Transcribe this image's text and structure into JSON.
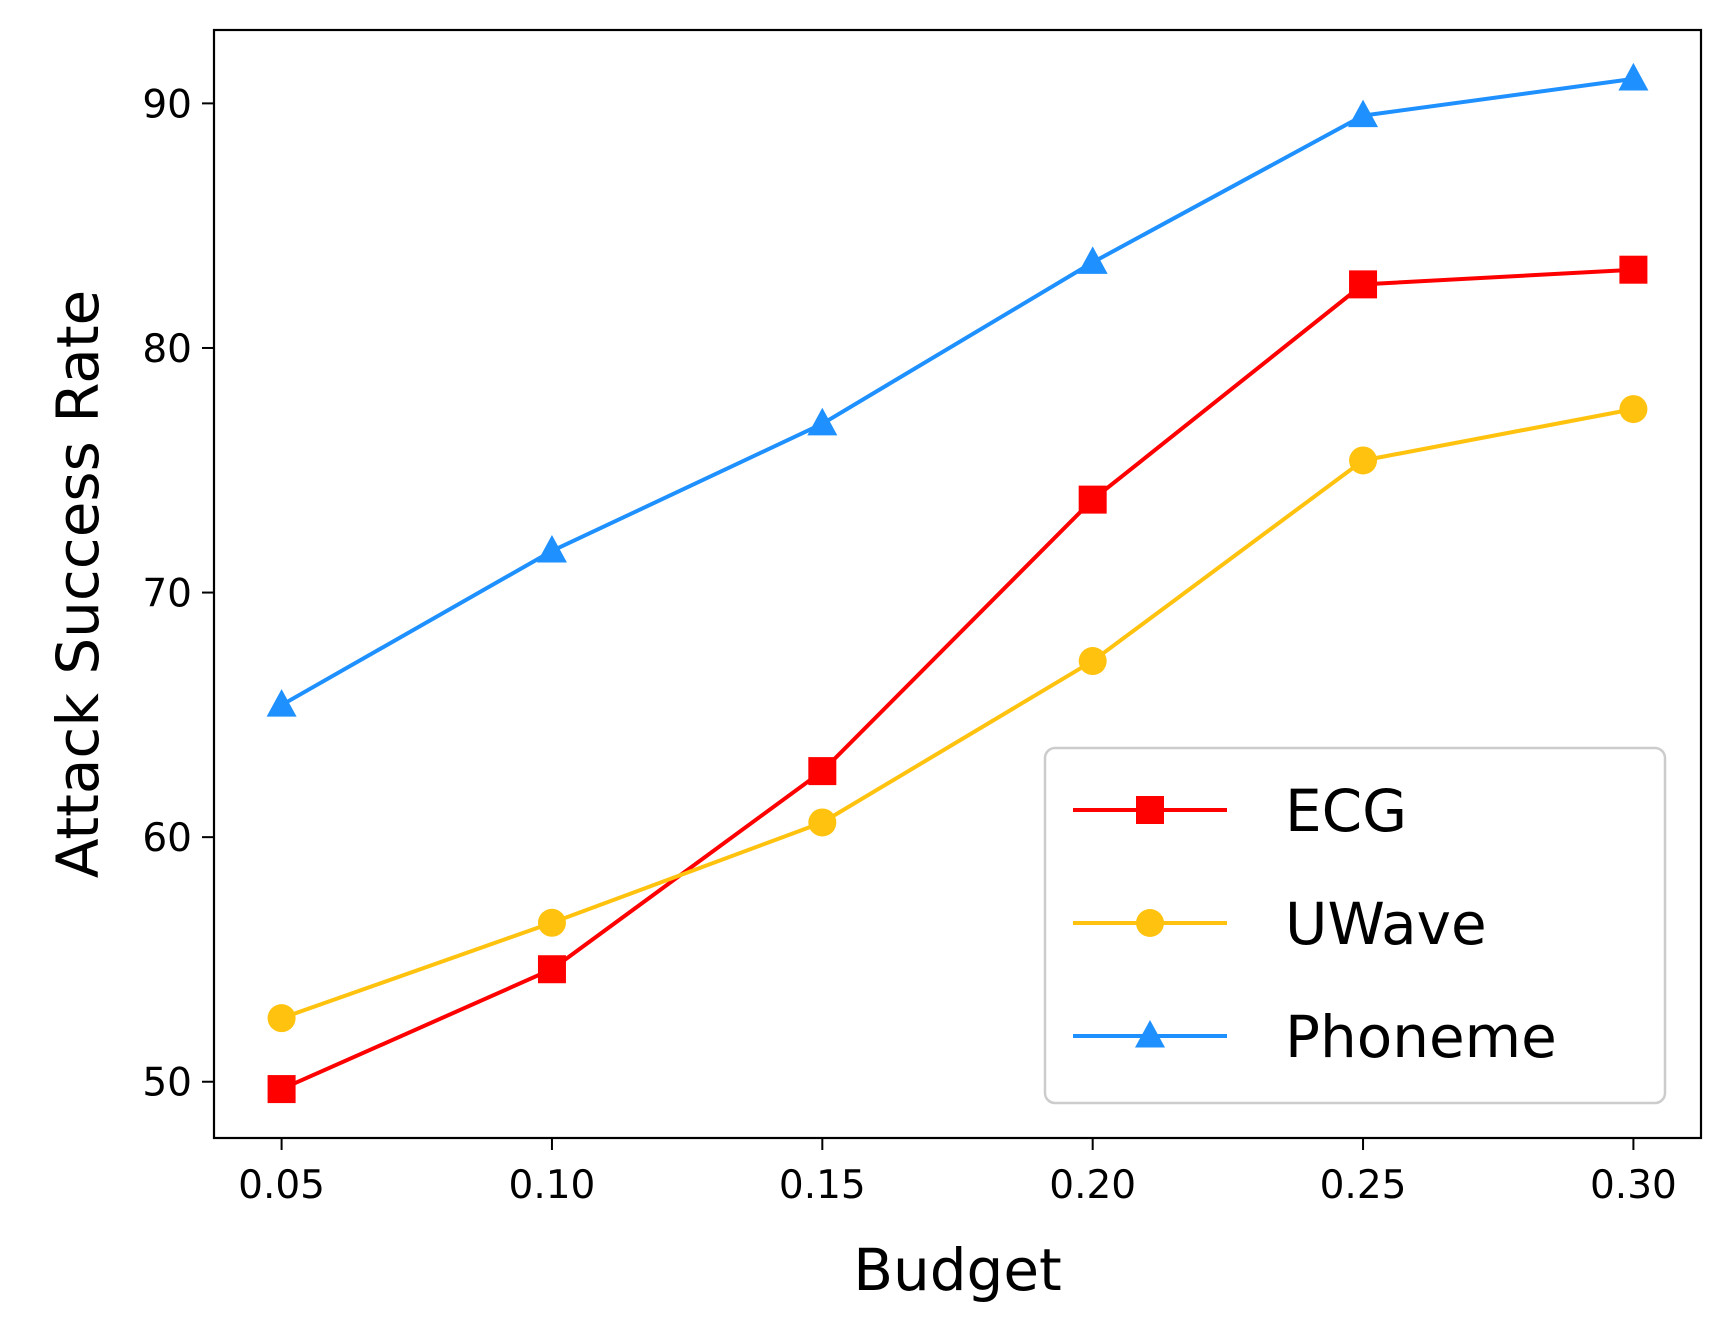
{
  "chart_data": {
    "type": "line",
    "title": "",
    "xlabel": "Budget",
    "ylabel": "Attack Success Rate",
    "x": [
      0.05,
      0.1,
      0.15,
      0.2,
      0.25,
      0.3
    ],
    "x_tick_labels": [
      "0.05",
      "0.10",
      "0.15",
      "0.20",
      "0.25",
      "0.30"
    ],
    "y_ticks": [
      50,
      60,
      70,
      80,
      90
    ],
    "y_tick_labels": [
      "50",
      "60",
      "70",
      "80",
      "90"
    ],
    "xlim": [
      0.0375,
      0.3125
    ],
    "ylim": [
      47.7,
      93.0
    ],
    "grid": false,
    "legend_position": "lower-right",
    "series": [
      {
        "name": "ECG",
        "color": "#ff0000",
        "marker": "square",
        "values": [
          49.7,
          54.6,
          62.7,
          73.8,
          82.6,
          83.2
        ]
      },
      {
        "name": "UWave",
        "color": "#ffc20e",
        "marker": "circle",
        "values": [
          52.6,
          56.5,
          60.6,
          67.2,
          75.4,
          77.5
        ]
      },
      {
        "name": "Phoneme",
        "color": "#1e90ff",
        "marker": "triangle",
        "values": [
          65.4,
          71.7,
          76.9,
          83.5,
          89.5,
          91.0
        ]
      }
    ]
  }
}
